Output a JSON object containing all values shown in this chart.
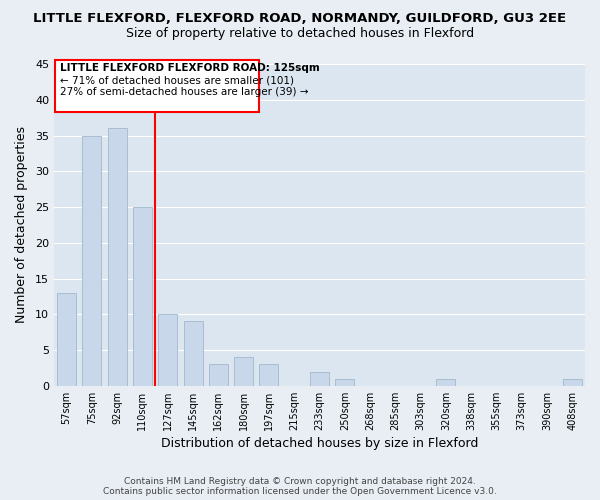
{
  "title": "LITTLE FLEXFORD, FLEXFORD ROAD, NORMANDY, GUILDFORD, GU3 2EE",
  "subtitle": "Size of property relative to detached houses in Flexford",
  "xlabel": "Distribution of detached houses by size in Flexford",
  "ylabel": "Number of detached properties",
  "bar_color": "#c8d8ea",
  "bar_edge_color": "#a8bfd0",
  "bins": [
    "57sqm",
    "75sqm",
    "92sqm",
    "110sqm",
    "127sqm",
    "145sqm",
    "162sqm",
    "180sqm",
    "197sqm",
    "215sqm",
    "233sqm",
    "250sqm",
    "268sqm",
    "285sqm",
    "303sqm",
    "320sqm",
    "338sqm",
    "355sqm",
    "373sqm",
    "390sqm",
    "408sqm"
  ],
  "values": [
    13,
    35,
    36,
    25,
    10,
    9,
    3,
    4,
    3,
    0,
    2,
    1,
    0,
    0,
    0,
    1,
    0,
    0,
    0,
    0,
    1
  ],
  "ylim": [
    0,
    45
  ],
  "yticks": [
    0,
    5,
    10,
    15,
    20,
    25,
    30,
    35,
    40,
    45
  ],
  "property_line_label": "LITTLE FLEXFORD FLEXFORD ROAD: 125sqm",
  "annotation_line1": "← 71% of detached houses are smaller (101)",
  "annotation_line2": "27% of semi-detached houses are larger (39) →",
  "footer1": "Contains HM Land Registry data © Crown copyright and database right 2024.",
  "footer2": "Contains public sector information licensed under the Open Government Licence v3.0.",
  "bg_color": "#e8eef4",
  "plot_bg_color": "#dce6f0",
  "grid_color": "#ffffff"
}
